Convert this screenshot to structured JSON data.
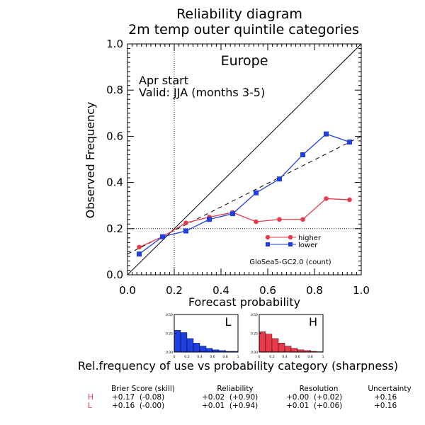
{
  "chart_data": {
    "type": "line",
    "title": "Reliability diagram",
    "subtitle": "2m temp outer quintile categories",
    "region": "Europe",
    "annotations": [
      "Apr start",
      "Valid: JJA (months 3-5)"
    ],
    "xlabel": "Forecast probability",
    "ylabel": "Observed Frequency",
    "xlim": [
      0,
      1
    ],
    "ylim": [
      0,
      1
    ],
    "xticks": [
      "0.0",
      "0.2",
      "0.4",
      "0.6",
      "0.8",
      "1.0"
    ],
    "yticks": [
      "0.0",
      "0.2",
      "0.4",
      "0.6",
      "0.8",
      "1.0"
    ],
    "reference_x": 0.2,
    "reference_y": 0.2,
    "model_label": "GloSea5-GC2.0 (count)",
    "series": [
      {
        "name": "higher",
        "color": "#e83a4a",
        "marker": "circle",
        "x": [
          0.05,
          0.15,
          0.25,
          0.35,
          0.45,
          0.55,
          0.65,
          0.75,
          0.85,
          0.95
        ],
        "y": [
          0.12,
          0.165,
          0.225,
          0.25,
          0.27,
          0.23,
          0.24,
          0.24,
          0.33,
          0.325
        ]
      },
      {
        "name": "lower",
        "color": "#1f3fe0",
        "marker": "square",
        "x": [
          0.05,
          0.15,
          0.25,
          0.35,
          0.45,
          0.55,
          0.65,
          0.75,
          0.85,
          0.95
        ],
        "y": [
          0.09,
          0.165,
          0.19,
          0.24,
          0.265,
          0.355,
          0.415,
          0.52,
          0.61,
          0.575
        ]
      }
    ],
    "fit_line": {
      "x": [
        0,
        1
      ],
      "y": [
        0.09,
        0.6
      ]
    },
    "sharpness": {
      "caption": "Rel.frequency of use vs probability category (sharpness)",
      "yticks": [
        "0.50",
        "0.25",
        "0.00"
      ],
      "xticks": [
        "0",
        "0.2",
        "0.4",
        "0.6",
        "0.8",
        "1"
      ],
      "ylim": [
        0,
        0.5
      ],
      "panels": [
        {
          "label": "L",
          "color": "#1f3fe0",
          "values": [
            0.29,
            0.26,
            0.18,
            0.12,
            0.08,
            0.05,
            0.03,
            0.02,
            0.01,
            0.01
          ]
        },
        {
          "label": "H",
          "color": "#e83a4a",
          "values": [
            0.27,
            0.24,
            0.18,
            0.12,
            0.08,
            0.05,
            0.03,
            0.02,
            0.01,
            0.005
          ]
        }
      ]
    },
    "scores": {
      "headers": [
        "Brier Score (skill)",
        "Reliability",
        "Resolution",
        "Uncertainty"
      ],
      "rows": [
        {
          "label": "H",
          "color": "#e83a4a",
          "values": [
            "+0.17  (-0.08)",
            "+0.02  (+0.90)",
            "+0.00  (+0.02)",
            "+0.16"
          ]
        },
        {
          "label": "L",
          "color": "#e83a4a",
          "values": [
            "+0.16  (-0.00)",
            "+0.01  (+0.94)",
            "+0.01  (+0.06)",
            "+0.16"
          ]
        }
      ]
    }
  }
}
